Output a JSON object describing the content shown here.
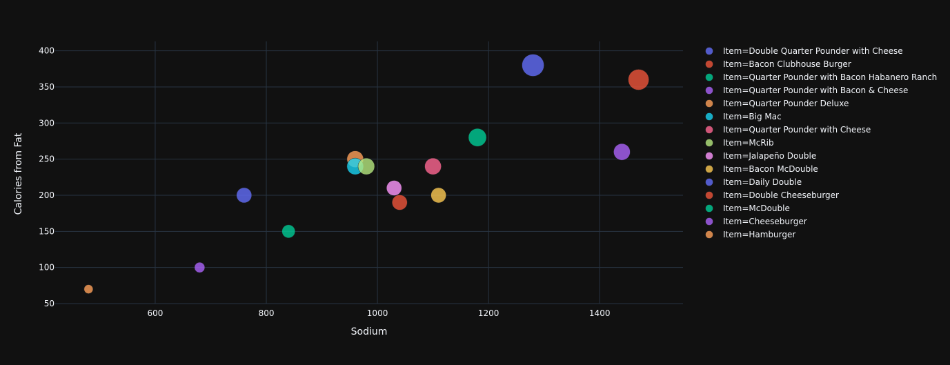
{
  "chart_data": {
    "type": "scatter",
    "title": "",
    "xlabel": "Sodium",
    "ylabel": "Calories from Fat",
    "xlim": [
      420,
      1550
    ],
    "ylim": [
      50,
      413
    ],
    "x_ticks": [
      600,
      800,
      1000,
      1200,
      1400
    ],
    "y_ticks": [
      50,
      100,
      150,
      200,
      250,
      300,
      350,
      400
    ],
    "grid": true,
    "legend_position": "right",
    "legend_prefix": "Item=",
    "colors": {
      "background": "#111111",
      "grid": "#283442",
      "text": "#f2f5fa"
    },
    "series": [
      {
        "name": "Double Quarter Pounder with Cheese",
        "color": "#636efa",
        "x": [
          1280
        ],
        "y": [
          380
        ],
        "size": [
          16
        ]
      },
      {
        "name": "Bacon Clubhouse Burger",
        "color": "#EF553B",
        "x": [
          1470
        ],
        "y": [
          360
        ],
        "size": [
          15
        ]
      },
      {
        "name": "Quarter Pounder with Bacon Habanero Ranch",
        "color": "#00cc96",
        "x": [
          1180
        ],
        "y": [
          280
        ],
        "size": [
          13
        ]
      },
      {
        "name": "Quarter Pounder with Bacon & Cheese",
        "color": "#ab63fa",
        "x": [
          1440
        ],
        "y": [
          260
        ],
        "size": [
          12
        ]
      },
      {
        "name": "Quarter Pounder Deluxe",
        "color": "#FFA15A",
        "x": [
          960
        ],
        "y": [
          250
        ],
        "size": [
          12
        ]
      },
      {
        "name": "Big Mac",
        "color": "#19d3f3",
        "x": [
          960
        ],
        "y": [
          240
        ],
        "size": [
          12
        ]
      },
      {
        "name": "Quarter Pounder with Cheese",
        "color": "#FF6692",
        "x": [
          1100
        ],
        "y": [
          240
        ],
        "size": [
          12
        ]
      },
      {
        "name": "McRib",
        "color": "#B6E880",
        "x": [
          980
        ],
        "y": [
          240
        ],
        "size": [
          12
        ]
      },
      {
        "name": "Jalapeño Double",
        "color": "#FF97FF",
        "x": [
          1030
        ],
        "y": [
          210
        ],
        "size": [
          11
        ]
      },
      {
        "name": "Bacon McDouble",
        "color": "#FECB52",
        "x": [
          1110
        ],
        "y": [
          200
        ],
        "size": [
          11
        ]
      },
      {
        "name": "Daily Double",
        "color": "#636efa",
        "x": [
          760
        ],
        "y": [
          200
        ],
        "size": [
          11
        ]
      },
      {
        "name": "Double Cheeseburger",
        "color": "#EF553B",
        "x": [
          1040
        ],
        "y": [
          190
        ],
        "size": [
          11
        ]
      },
      {
        "name": "McDouble",
        "color": "#00cc96",
        "x": [
          840
        ],
        "y": [
          150
        ],
        "size": [
          9.5
        ]
      },
      {
        "name": "Cheeseburger",
        "color": "#ab63fa",
        "x": [
          680
        ],
        "y": [
          100
        ],
        "size": [
          7.5
        ]
      },
      {
        "name": "Hamburger",
        "color": "#FFA15A",
        "x": [
          480
        ],
        "y": [
          70
        ],
        "size": [
          6.5
        ]
      }
    ]
  }
}
